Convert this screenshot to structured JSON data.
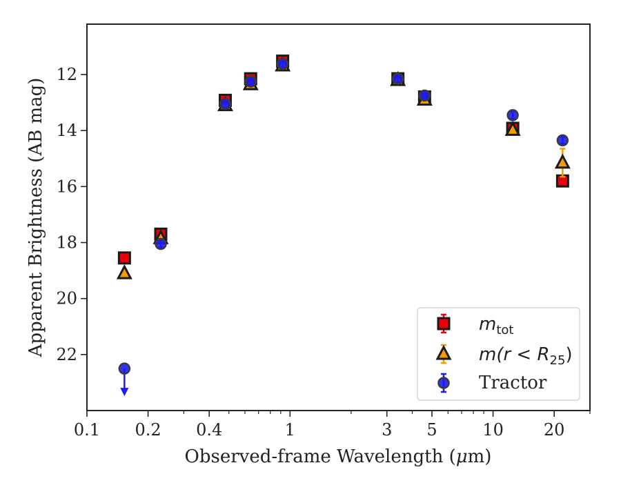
{
  "chart_data": {
    "type": "scatter",
    "xlabel_main": "Observed-frame Wavelength (",
    "xlabel_mu": "μ",
    "xlabel_end": "m)",
    "ylabel": "Apparent Brightness (AB mag)",
    "x_scale": "log",
    "xlim": [
      0.1,
      30
    ],
    "ylim": [
      24,
      10.2
    ],
    "y_inverted": true,
    "grid": false,
    "legend_position": "lower-right",
    "x_ticks": [
      {
        "value": 0.1,
        "label": "0.1"
      },
      {
        "value": 0.2,
        "label": "0.2"
      },
      {
        "value": 0.4,
        "label": "0.4"
      },
      {
        "value": 1,
        "label": "1"
      },
      {
        "value": 3,
        "label": "3"
      },
      {
        "value": 5,
        "label": "5"
      },
      {
        "value": 10,
        "label": "10"
      },
      {
        "value": 20,
        "label": "20"
      }
    ],
    "y_ticks": [
      {
        "value": 12,
        "label": "12"
      },
      {
        "value": 14,
        "label": "14"
      },
      {
        "value": 16,
        "label": "16"
      },
      {
        "value": 18,
        "label": "18"
      },
      {
        "value": 20,
        "label": "20"
      },
      {
        "value": 22,
        "label": "22"
      }
    ],
    "series": [
      {
        "key": "mtot",
        "marker": "square",
        "fill": "#e8000b",
        "edge": "#1a1a1a",
        "errcolor": "#e8000b",
        "points": [
          {
            "x": 0.153,
            "y": 18.55,
            "err": 0.05
          },
          {
            "x": 0.231,
            "y": 17.7,
            "err": 0.05
          },
          {
            "x": 0.48,
            "y": 12.92,
            "err": 0.05
          },
          {
            "x": 0.64,
            "y": 12.15,
            "err": 0.05
          },
          {
            "x": 0.92,
            "y": 11.52,
            "err": 0.05
          },
          {
            "x": 3.4,
            "y": 12.15,
            "err": 0.05
          },
          {
            "x": 4.6,
            "y": 12.8,
            "err": 0.05
          },
          {
            "x": 12.5,
            "y": 13.92,
            "err": 0.1
          },
          {
            "x": 22.0,
            "y": 15.8,
            "err": 0.12
          }
        ]
      },
      {
        "key": "mr25",
        "marker": "triangle",
        "fill": "#f59a00",
        "edge": "#1a1a1a",
        "errcolor": "#f59a00",
        "points": [
          {
            "x": 0.153,
            "y": 19.1,
            "err": 0.1
          },
          {
            "x": 0.231,
            "y": 17.85,
            "err": 0.05
          },
          {
            "x": 0.48,
            "y": 13.1,
            "err": 0.05
          },
          {
            "x": 0.64,
            "y": 12.35,
            "err": 0.05
          },
          {
            "x": 0.92,
            "y": 11.68,
            "err": 0.05
          },
          {
            "x": 3.4,
            "y": 12.2,
            "err": 0.05
          },
          {
            "x": 4.6,
            "y": 12.9,
            "err": 0.05
          },
          {
            "x": 12.5,
            "y": 13.98,
            "err": 0.1
          },
          {
            "x": 22.0,
            "y": 15.15,
            "err": 0.5
          }
        ]
      },
      {
        "key": "tractor",
        "marker": "circle",
        "fill": "#1d1df0",
        "edge": "#3a3a3a",
        "errcolor": "#1d1df0",
        "points": [
          {
            "x": 0.153,
            "y": 22.5,
            "upper_limit": true
          },
          {
            "x": 0.231,
            "y": 18.05,
            "err": 0.05
          },
          {
            "x": 0.48,
            "y": 13.05,
            "err": 0.05
          },
          {
            "x": 0.64,
            "y": 12.25,
            "err": 0.05
          },
          {
            "x": 0.92,
            "y": 11.62,
            "err": 0.05
          },
          {
            "x": 3.4,
            "y": 12.15,
            "err": 0.05
          },
          {
            "x": 4.6,
            "y": 12.75,
            "err": 0.05
          },
          {
            "x": 12.5,
            "y": 13.45,
            "err": 0.05
          },
          {
            "x": 22.0,
            "y": 14.35,
            "err": 0.05
          }
        ]
      }
    ],
    "legend": [
      {
        "key": "mtot",
        "math_main": "m",
        "math_sub": "tot"
      },
      {
        "key": "mr25",
        "math_main": "m(r < R",
        "math_sub": "25",
        "math_tail": ")"
      },
      {
        "key": "tractor",
        "text": "Tractor"
      }
    ]
  }
}
